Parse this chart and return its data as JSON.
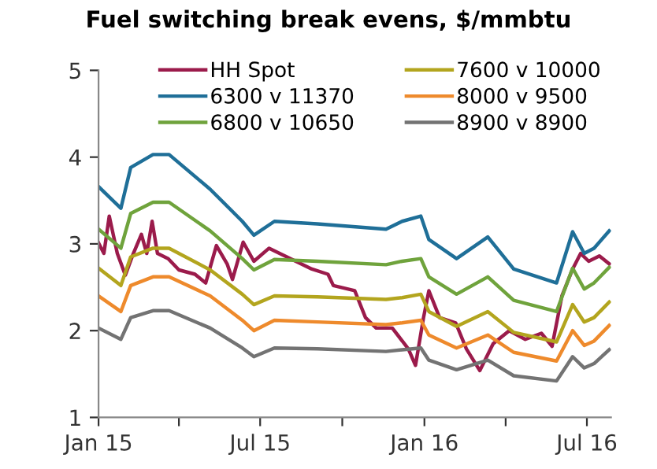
{
  "chart_data": {
    "type": "line",
    "title": "Fuel switching break evens, $/mmbtu",
    "ylim": [
      1,
      5
    ],
    "yticks": [
      1,
      2,
      3,
      4,
      5
    ],
    "xlim": [
      "2015-01-01",
      "2016-07-28"
    ],
    "xticks": [
      {
        "value": "2015-01-01",
        "label": "Jan 15"
      },
      {
        "value": "2015-04-01",
        "label": null
      },
      {
        "value": "2015-07-01",
        "label": "Jul 15"
      },
      {
        "value": "2015-10-01",
        "label": null
      },
      {
        "value": "2016-01-01",
        "label": "Jan 16"
      },
      {
        "value": "2016-04-01",
        "label": null
      },
      {
        "value": "2016-07-01",
        "label": "Jul 16"
      }
    ],
    "grid": false,
    "legend": "top",
    "marker": "none",
    "line_style": "solid",
    "x": [
      "2015-01-01",
      "2015-01-26",
      "2015-02-06",
      "2015-03-03",
      "2015-03-21",
      "2015-05-06",
      "2015-06-11",
      "2015-06-24",
      "2015-07-17",
      "2015-09-03",
      "2015-11-19",
      "2015-12-07",
      "2015-12-28",
      "2016-01-06",
      "2016-02-06",
      "2016-03-12",
      "2016-04-10",
      "2016-05-28",
      "2016-06-15",
      "2016-06-28",
      "2016-07-09",
      "2016-07-26"
    ],
    "series": [
      {
        "name": "HH Spot",
        "color": "#9b1b4b",
        "x": [
          "2015-01-01",
          "2015-01-07",
          "2015-01-13",
          "2015-01-22",
          "2015-01-31",
          "2015-02-09",
          "2015-02-18",
          "2015-02-24",
          "2015-03-02",
          "2015-03-08",
          "2015-03-20",
          "2015-04-01",
          "2015-04-19",
          "2015-05-01",
          "2015-05-13",
          "2015-05-25",
          "2015-05-31",
          "2015-06-12",
          "2015-06-24",
          "2015-07-11",
          "2015-08-04",
          "2015-08-28",
          "2015-09-15",
          "2015-09-21",
          "2015-10-15",
          "2015-10-27",
          "2015-11-08",
          "2015-11-26",
          "2015-12-14",
          "2015-12-22",
          "2015-12-31",
          "2016-01-06",
          "2016-01-18",
          "2016-02-05",
          "2016-02-17",
          "2016-03-03",
          "2016-03-18",
          "2016-04-05",
          "2016-04-23",
          "2016-05-11",
          "2016-05-23",
          "2016-06-03",
          "2016-06-15",
          "2016-06-24",
          "2016-07-03",
          "2016-07-15",
          "2016-07-26"
        ],
        "values": [
          3.01,
          2.89,
          3.32,
          2.89,
          2.64,
          2.89,
          3.11,
          2.89,
          3.26,
          2.89,
          2.83,
          2.7,
          2.65,
          2.55,
          2.98,
          2.77,
          2.59,
          3.02,
          2.8,
          2.95,
          2.83,
          2.71,
          2.65,
          2.52,
          2.46,
          2.15,
          2.03,
          2.03,
          1.79,
          1.6,
          2.15,
          2.46,
          2.15,
          2.09,
          1.79,
          1.54,
          1.85,
          2.0,
          1.9,
          1.97,
          1.82,
          2.4,
          2.71,
          2.89,
          2.8,
          2.86,
          2.77
        ]
      },
      {
        "name": "6300 v 11370",
        "color": "#1f6f98",
        "values": [
          3.66,
          3.41,
          3.88,
          4.03,
          4.03,
          3.63,
          3.26,
          3.1,
          3.26,
          3.23,
          3.17,
          3.26,
          3.32,
          3.05,
          2.83,
          3.08,
          2.71,
          2.55,
          3.14,
          2.89,
          2.95,
          3.15
        ]
      },
      {
        "name": "6800 v 10650",
        "color": "#6fa33c",
        "values": [
          3.17,
          2.95,
          3.35,
          3.48,
          3.48,
          3.15,
          2.83,
          2.7,
          2.82,
          2.8,
          2.76,
          2.8,
          2.83,
          2.62,
          2.42,
          2.62,
          2.35,
          2.22,
          2.72,
          2.48,
          2.55,
          2.73
        ]
      },
      {
        "name": "7600 v 10000",
        "color": "#b3a51e",
        "values": [
          2.72,
          2.52,
          2.85,
          2.95,
          2.95,
          2.7,
          2.42,
          2.3,
          2.4,
          2.39,
          2.36,
          2.38,
          2.42,
          2.22,
          2.05,
          2.22,
          1.98,
          1.87,
          2.3,
          2.1,
          2.15,
          2.33
        ]
      },
      {
        "name": "8000 v 9500",
        "color": "#ee8a2c",
        "values": [
          2.4,
          2.22,
          2.52,
          2.62,
          2.62,
          2.4,
          2.12,
          2.0,
          2.12,
          2.1,
          2.07,
          2.09,
          2.12,
          1.95,
          1.8,
          1.95,
          1.75,
          1.65,
          2.0,
          1.83,
          1.88,
          2.06
        ]
      },
      {
        "name": "8900 v 8900",
        "color": "#737373",
        "values": [
          2.03,
          1.9,
          2.15,
          2.23,
          2.23,
          2.03,
          1.8,
          1.7,
          1.8,
          1.79,
          1.76,
          1.78,
          1.8,
          1.66,
          1.55,
          1.66,
          1.48,
          1.42,
          1.7,
          1.57,
          1.62,
          1.78
        ]
      }
    ]
  }
}
